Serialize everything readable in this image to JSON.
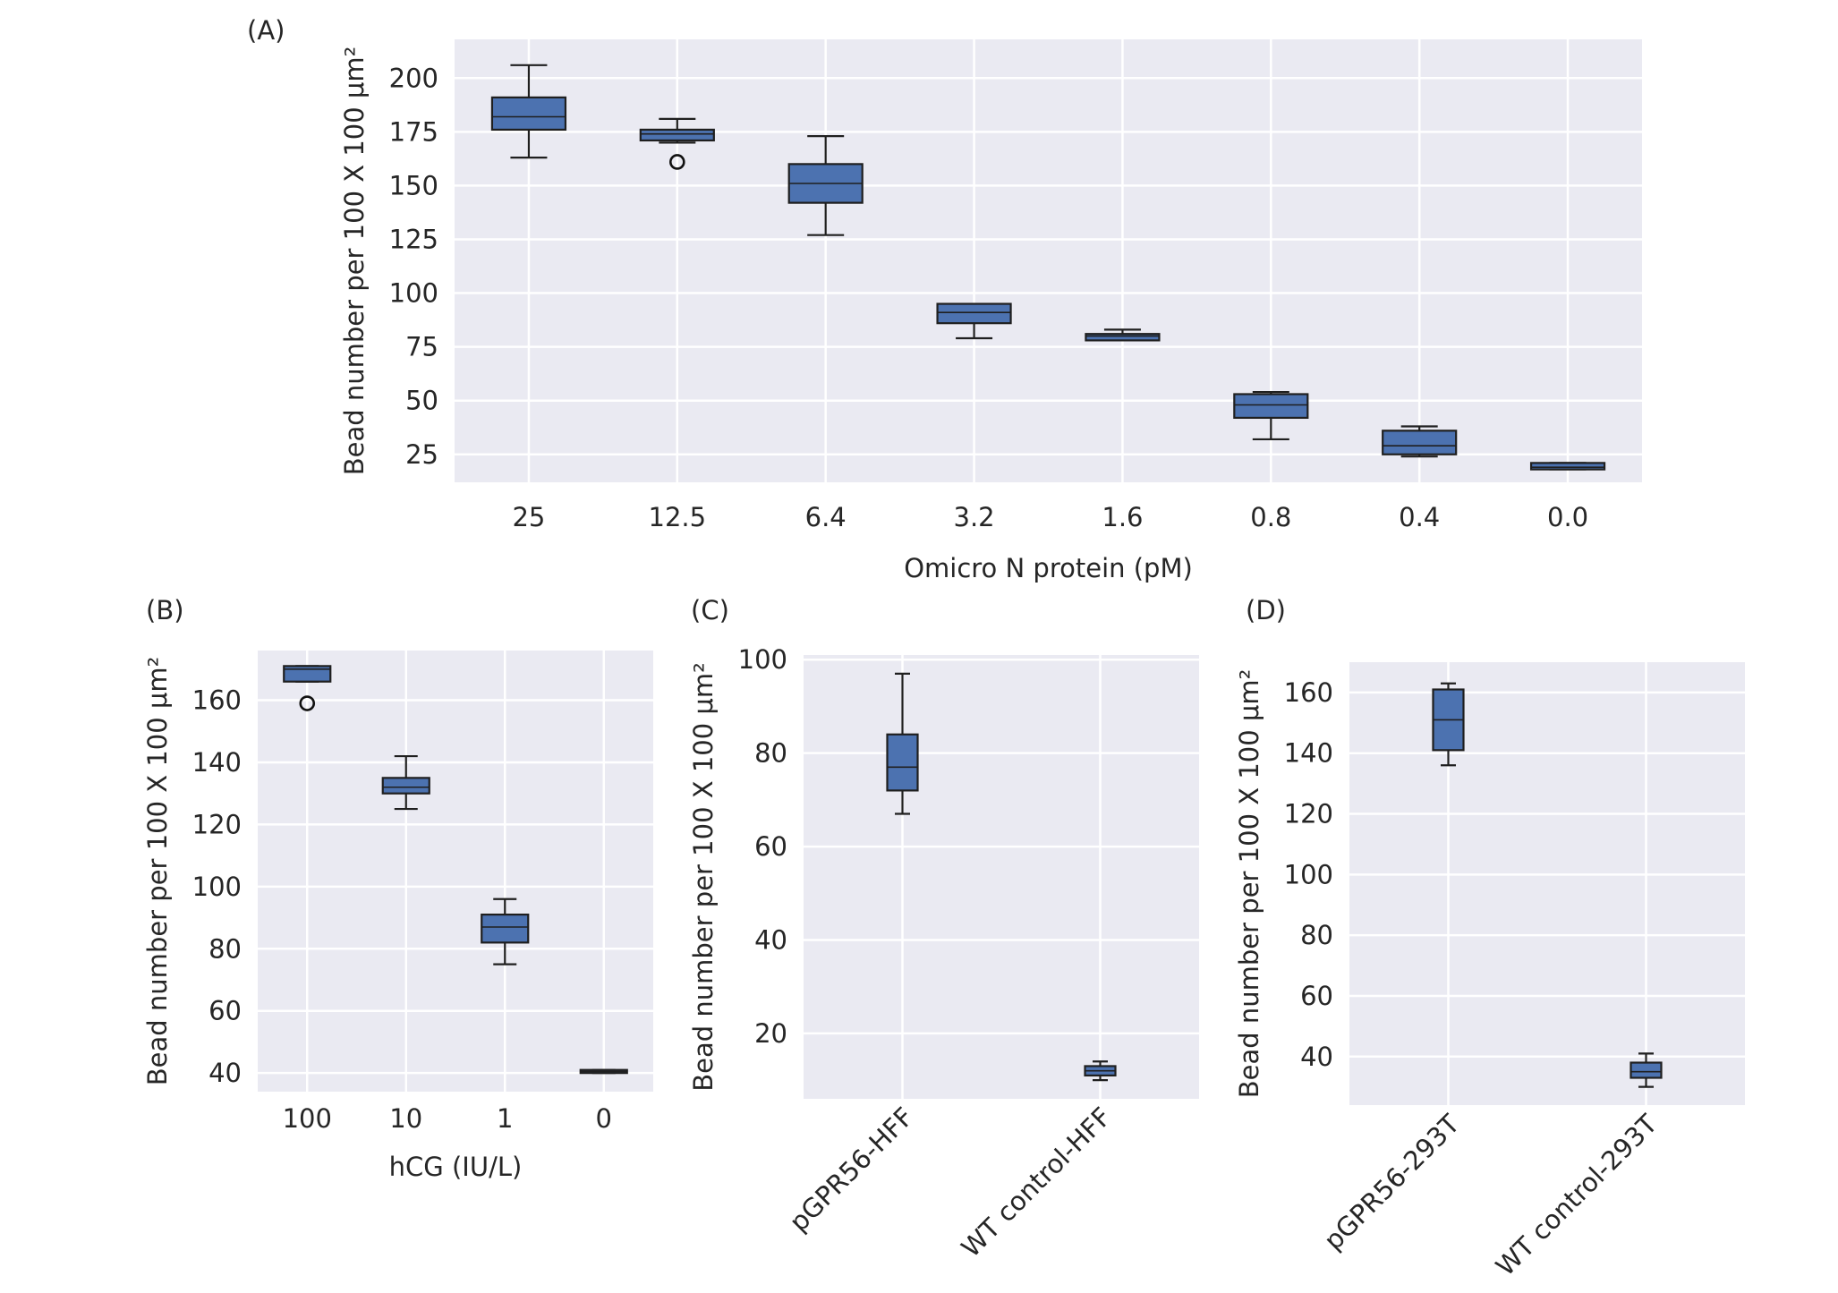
{
  "box_color": "#4c72b0",
  "chart_data": [
    {
      "id": "A",
      "panel_label": "(A)",
      "type": "box",
      "xlabel": "Omicro N protein (pM)",
      "ylabel": "Bead number per 100 X 100 μm²",
      "ylim": [
        12,
        218
      ],
      "yticks": [
        25,
        50,
        75,
        100,
        125,
        150,
        175,
        200
      ],
      "grid": true,
      "legend": "none",
      "categories": [
        "25",
        "12.5",
        "6.4",
        "3.2",
        "1.6",
        "0.8",
        "0.4",
        "0.0"
      ],
      "boxes": [
        {
          "whislo": 163,
          "q1": 176,
          "med": 182,
          "q3": 191,
          "whishi": 206,
          "fliers": []
        },
        {
          "whislo": 170,
          "q1": 171,
          "med": 174,
          "q3": 176,
          "whishi": 181,
          "fliers": [
            161
          ]
        },
        {
          "whislo": 127,
          "q1": 142,
          "med": 151,
          "q3": 160,
          "whishi": 173,
          "fliers": []
        },
        {
          "whislo": 79,
          "q1": 86,
          "med": 91,
          "q3": 95,
          "whishi": 95,
          "fliers": []
        },
        {
          "whislo": 78,
          "q1": 78,
          "med": 80,
          "q3": 81,
          "whishi": 83,
          "fliers": []
        },
        {
          "whislo": 32,
          "q1": 42,
          "med": 48,
          "q3": 53,
          "whishi": 54,
          "fliers": []
        },
        {
          "whislo": 24,
          "q1": 25,
          "med": 29,
          "q3": 36,
          "whishi": 38,
          "fliers": []
        },
        {
          "whislo": 18,
          "q1": 18,
          "med": 19,
          "q3": 21,
          "whishi": 21,
          "fliers": []
        }
      ]
    },
    {
      "id": "B",
      "panel_label": "(B)",
      "type": "box",
      "xlabel": "hCG (IU/L)",
      "ylabel": "Bead number per 100 X 100 μm²",
      "ylim": [
        34,
        176
      ],
      "yticks": [
        40,
        60,
        80,
        100,
        120,
        140,
        160
      ],
      "grid": true,
      "legend": "none",
      "categories": [
        "100",
        "10",
        "1",
        "0"
      ],
      "boxes": [
        {
          "whislo": 166,
          "q1": 166,
          "med": 170,
          "q3": 171,
          "whishi": 171,
          "fliers": [
            159
          ]
        },
        {
          "whislo": 125,
          "q1": 130,
          "med": 132,
          "q3": 135,
          "whishi": 142,
          "fliers": []
        },
        {
          "whislo": 75,
          "q1": 82,
          "med": 87,
          "q3": 91,
          "whishi": 96,
          "fliers": []
        },
        {
          "whislo": 40,
          "q1": 40,
          "med": 40.5,
          "q3": 41,
          "whishi": 41,
          "fliers": []
        }
      ]
    },
    {
      "id": "C",
      "panel_label": "(C)",
      "type": "box",
      "xlabel": "",
      "ylabel": "Bead number per 100 X 100 μm²",
      "ylim": [
        6,
        101
      ],
      "yticks": [
        20,
        40,
        60,
        80,
        100
      ],
      "grid": true,
      "legend": "none",
      "categories": [
        "pGPR56-HFF",
        "WT control-HFF"
      ],
      "boxes": [
        {
          "whislo": 67,
          "q1": 72,
          "med": 77,
          "q3": 84,
          "whishi": 97,
          "fliers": []
        },
        {
          "whislo": 10,
          "q1": 11,
          "med": 12,
          "q3": 13,
          "whishi": 14,
          "fliers": []
        }
      ]
    },
    {
      "id": "D",
      "panel_label": "(D)",
      "type": "box",
      "xlabel": "",
      "ylabel": "Bead number per 100 X 100 μm²",
      "ylim": [
        24,
        170
      ],
      "yticks": [
        40,
        60,
        80,
        100,
        120,
        140,
        160
      ],
      "grid": true,
      "legend": "none",
      "categories": [
        "pGPR56-293T",
        "WT control-293T"
      ],
      "boxes": [
        {
          "whislo": 136,
          "q1": 141,
          "med": 151,
          "q3": 161,
          "whishi": 163,
          "fliers": []
        },
        {
          "whislo": 30,
          "q1": 33,
          "med": 35,
          "q3": 38,
          "whishi": 41,
          "fliers": []
        }
      ]
    }
  ]
}
